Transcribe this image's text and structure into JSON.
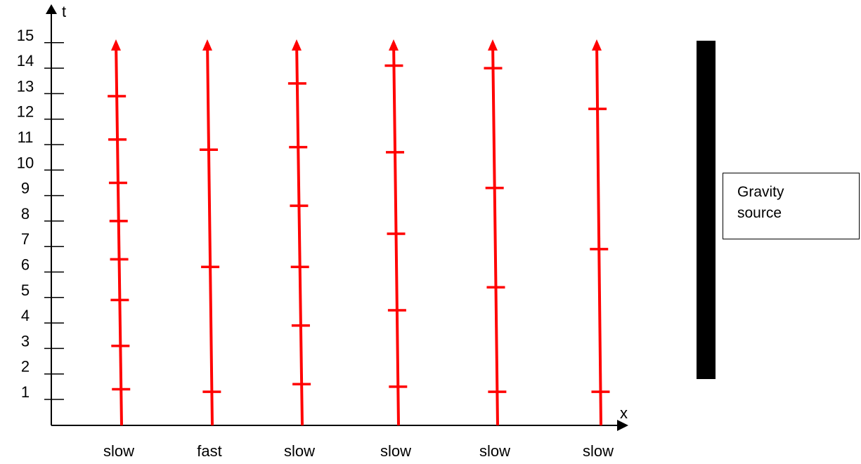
{
  "axes": {
    "t_label": "t",
    "x_label": "x",
    "t_ticks": [
      "1",
      "2",
      "3",
      "4",
      "5",
      "6",
      "7",
      "8",
      "9",
      "10",
      "11",
      "12",
      "13",
      "14",
      "15"
    ]
  },
  "worldlines": [
    {
      "label": "slow",
      "marks": [
        1.4,
        3.1,
        4.9,
        6.5,
        8.0,
        9.5,
        11.2,
        12.9
      ]
    },
    {
      "label": "fast",
      "marks": [
        1.3,
        6.2,
        10.8
      ]
    },
    {
      "label": "slow",
      "marks": [
        1.6,
        3.9,
        6.2,
        8.6,
        10.9,
        13.4
      ]
    },
    {
      "label": "slow",
      "marks": [
        1.5,
        4.5,
        7.5,
        10.7,
        14.1
      ]
    },
    {
      "label": "slow",
      "marks": [
        1.3,
        5.4,
        9.3,
        14.0
      ]
    },
    {
      "label": "slow",
      "marks": [
        1.3,
        6.9,
        12.4
      ]
    }
  ],
  "gravity_source": {
    "line1": "Gravity",
    "line2": "source",
    "color": "#000000"
  },
  "colors": {
    "worldline": "#ff0000",
    "axis": "#000000"
  }
}
